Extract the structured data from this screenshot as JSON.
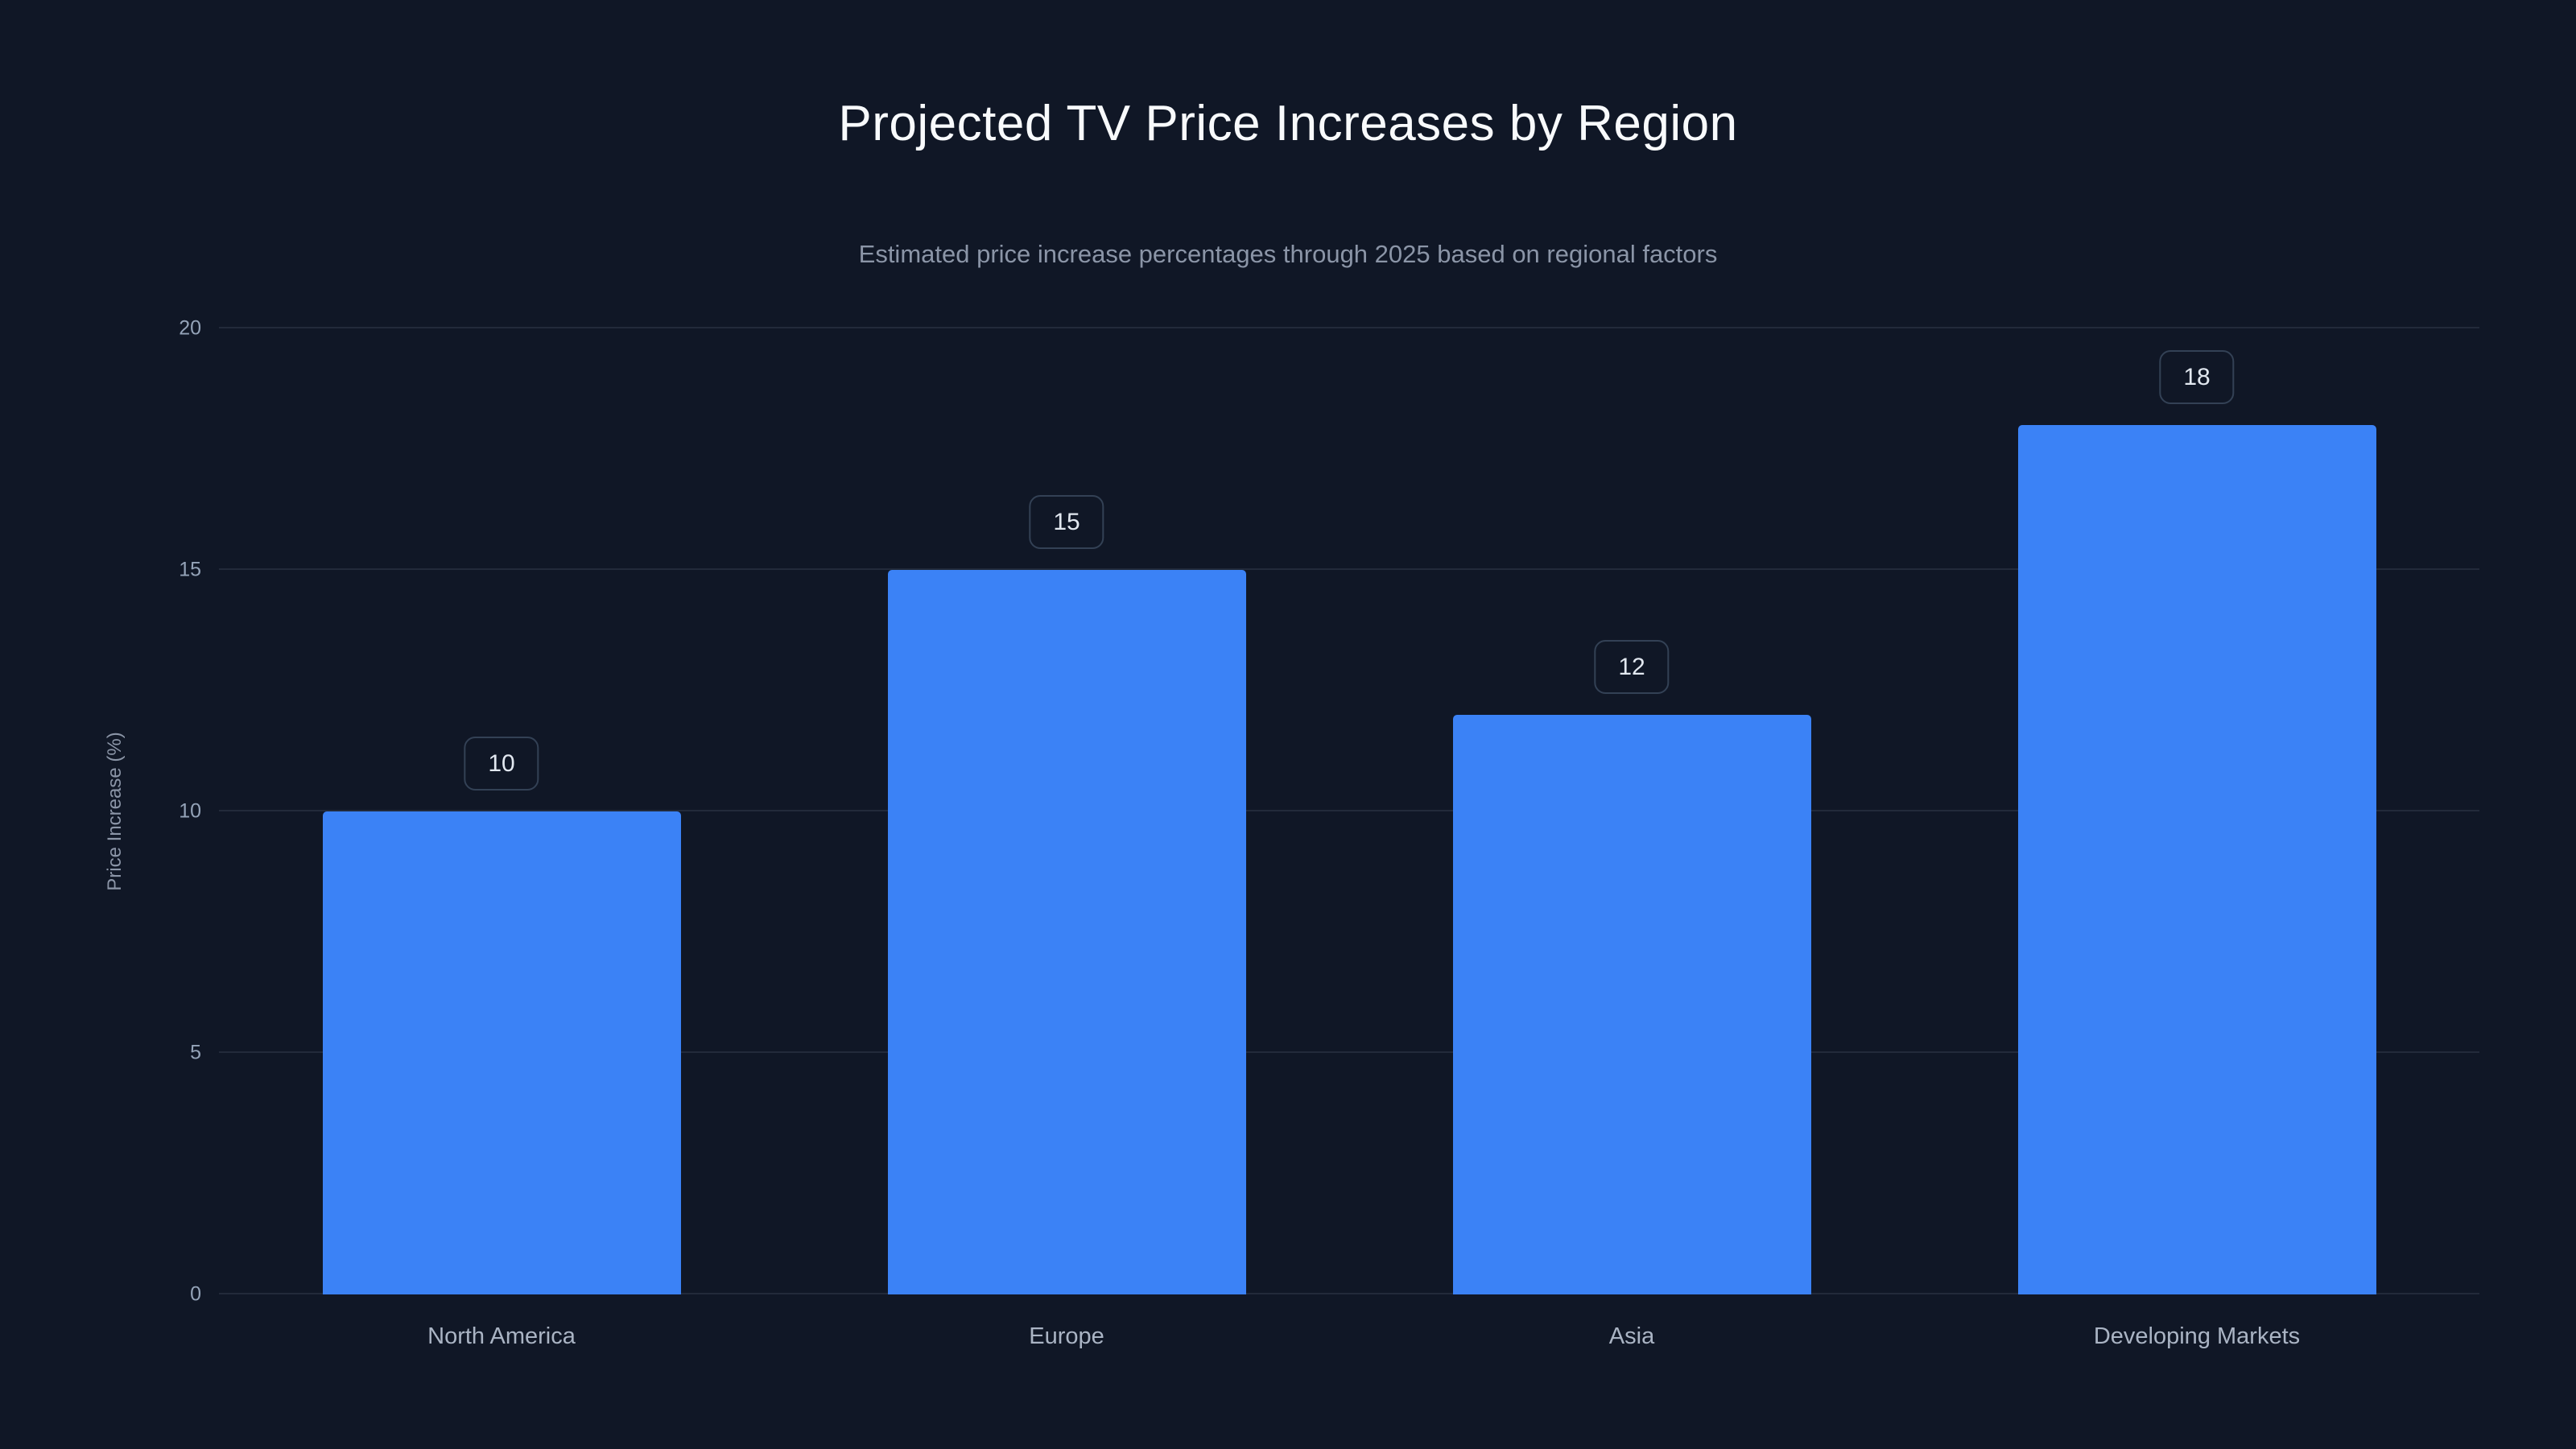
{
  "page": {
    "title": "Projected TV Price Increases by Region",
    "subtitle": "Estimated price increase percentages through 2025 based on regional factors"
  },
  "chart_data": {
    "type": "bar",
    "title": "Projected TV Price Increases by Region",
    "subtitle": "Estimated price increase percentages through 2025 based on regional factors",
    "categories": [
      "North America",
      "Europe",
      "Asia",
      "Developing Markets"
    ],
    "values": [
      10,
      15,
      12,
      18
    ],
    "data_labels": [
      "10",
      "15",
      "12",
      "18"
    ],
    "xlabel": "",
    "ylabel": "Price Increase (%)",
    "ylim": [
      0,
      20
    ],
    "yticks": [
      0,
      5,
      10,
      15,
      20
    ],
    "grid": "horizontal",
    "legend": "none",
    "colors": {
      "background": "#101726",
      "bar": "#3b82f6",
      "grid_line": "rgba(148,163,184,0.14)",
      "tick_text": "#94a3b8",
      "title_text": "#f8fafc",
      "subtitle_text": "#8b95a7",
      "badge_border": "#334155",
      "badge_text": "#e2e8f0"
    }
  }
}
